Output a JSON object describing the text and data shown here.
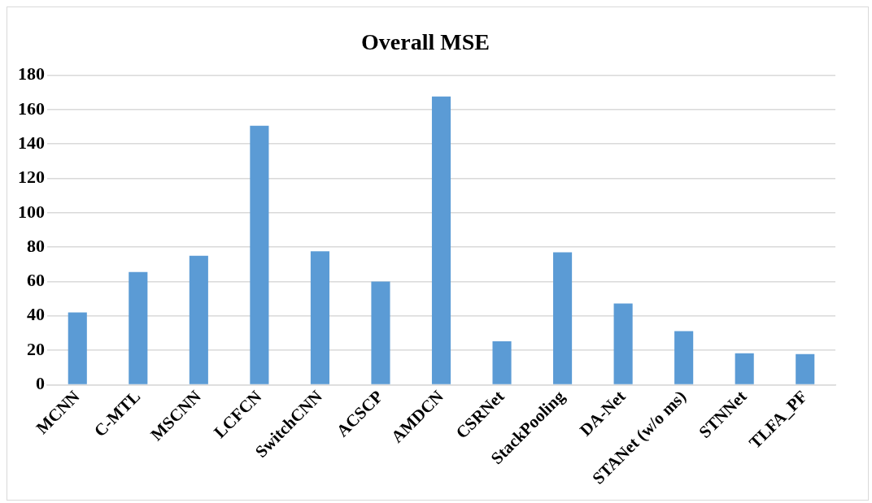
{
  "chart_data": {
    "type": "bar",
    "title": "Overall MSE",
    "categories": [
      "MCNN",
      "C-MTL",
      "MSCNN",
      "LCFCN",
      "SwitchCNN",
      "ACSCP",
      "AMDCN",
      "CSRNet",
      "StackPooling",
      "DA-Net",
      "STANet (w/o ms)",
      "STNNet",
      "TLFA_PF"
    ],
    "values": [
      42,
      65.5,
      75,
      150.6,
      77.6,
      60,
      167.6,
      25.2,
      77,
      47.2,
      31.1,
      18.3,
      17.8
    ],
    "color": "#5b9bd5",
    "ylim": [
      0,
      180
    ],
    "yticks": [
      0,
      20,
      40,
      60,
      80,
      100,
      120,
      140,
      160,
      180
    ],
    "grid": "y",
    "legend": false
  }
}
